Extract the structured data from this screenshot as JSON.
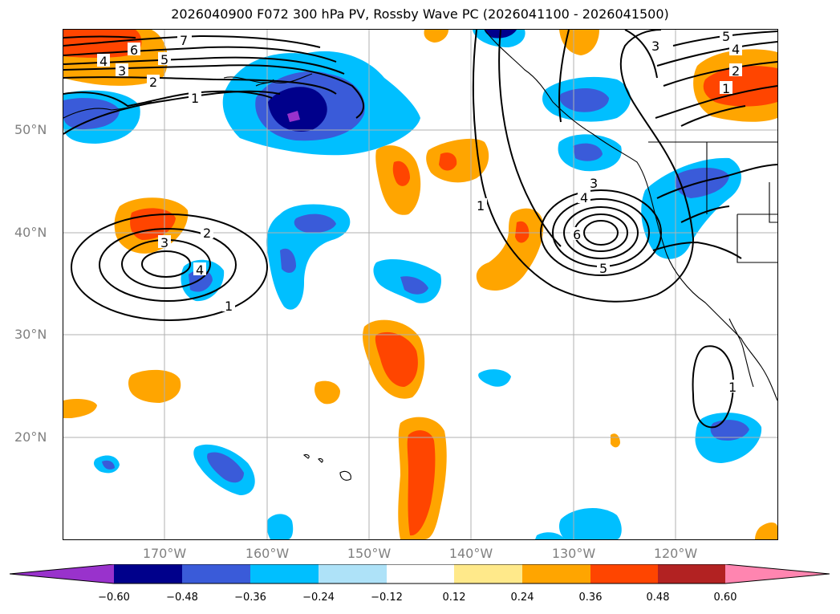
{
  "title": "2026040900 F072 300 hPa PV, Rossby Wave PC (2026041100 - 2026041500)",
  "lat_labels": [
    "50°N",
    "40°N",
    "30°N",
    "20°N"
  ],
  "lon_labels": [
    "170°W",
    "160°W",
    "150°W",
    "140°W",
    "130°W",
    "120°W"
  ],
  "colorbar": {
    "ticks": [
      "−0.60",
      "−0.48",
      "−0.36",
      "−0.24",
      "−0.12",
      "0.12",
      "0.24",
      "0.36",
      "0.48",
      "0.60"
    ],
    "colors": [
      "#9932cc",
      "#00008b",
      "#3a5bd9",
      "#00bfff",
      "#aee2f8",
      "#ffffff",
      "#ffe98a",
      "#ffa500",
      "#ff4500",
      "#b22222",
      "#ff85b0"
    ]
  },
  "contour_labels": {
    "north": [
      "7",
      "6",
      "5",
      "4",
      "3",
      "2",
      "1"
    ],
    "northeast": [
      "5",
      "4",
      "3",
      "2",
      "1"
    ],
    "high_center": [
      "3",
      "4",
      "6",
      "5"
    ],
    "low_west": [
      "2",
      "3",
      "4",
      "1"
    ],
    "meridional": [
      "1"
    ],
    "baja": [
      "1"
    ]
  }
}
